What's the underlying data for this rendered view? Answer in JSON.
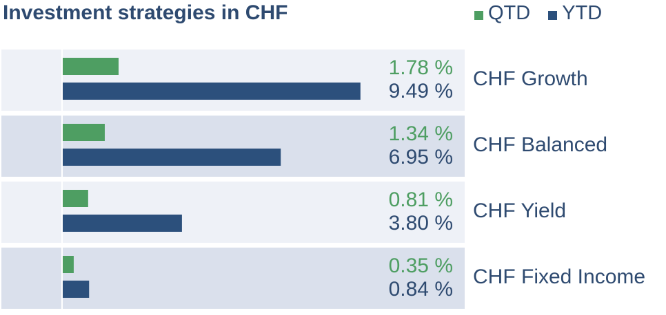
{
  "chart_data": {
    "type": "bar",
    "orientation": "horizontal",
    "title": "Investment strategies in CHF",
    "categories": [
      "CHF Growth",
      "CHF Balanced",
      "CHF Yield",
      "CHF Fixed Income"
    ],
    "series": [
      {
        "name": "QTD",
        "values": [
          1.78,
          1.34,
          0.81,
          0.35
        ],
        "labels": [
          "1.78 %",
          "1.34 %",
          "0.81 %",
          "0.35 %"
        ],
        "color": "#4e9e62"
      },
      {
        "name": "YTD",
        "values": [
          9.49,
          6.95,
          3.8,
          0.84
        ],
        "labels": [
          "9.49 %",
          "6.95 %",
          "3.80 %",
          "0.84 %"
        ],
        "color": "#2c507c"
      }
    ],
    "xlim": [
      0,
      10
    ],
    "legend": "top-right",
    "grid": false,
    "row_colors": [
      "#eef1f7",
      "#dae0ec"
    ],
    "value_text_color": "#2e4a70"
  }
}
